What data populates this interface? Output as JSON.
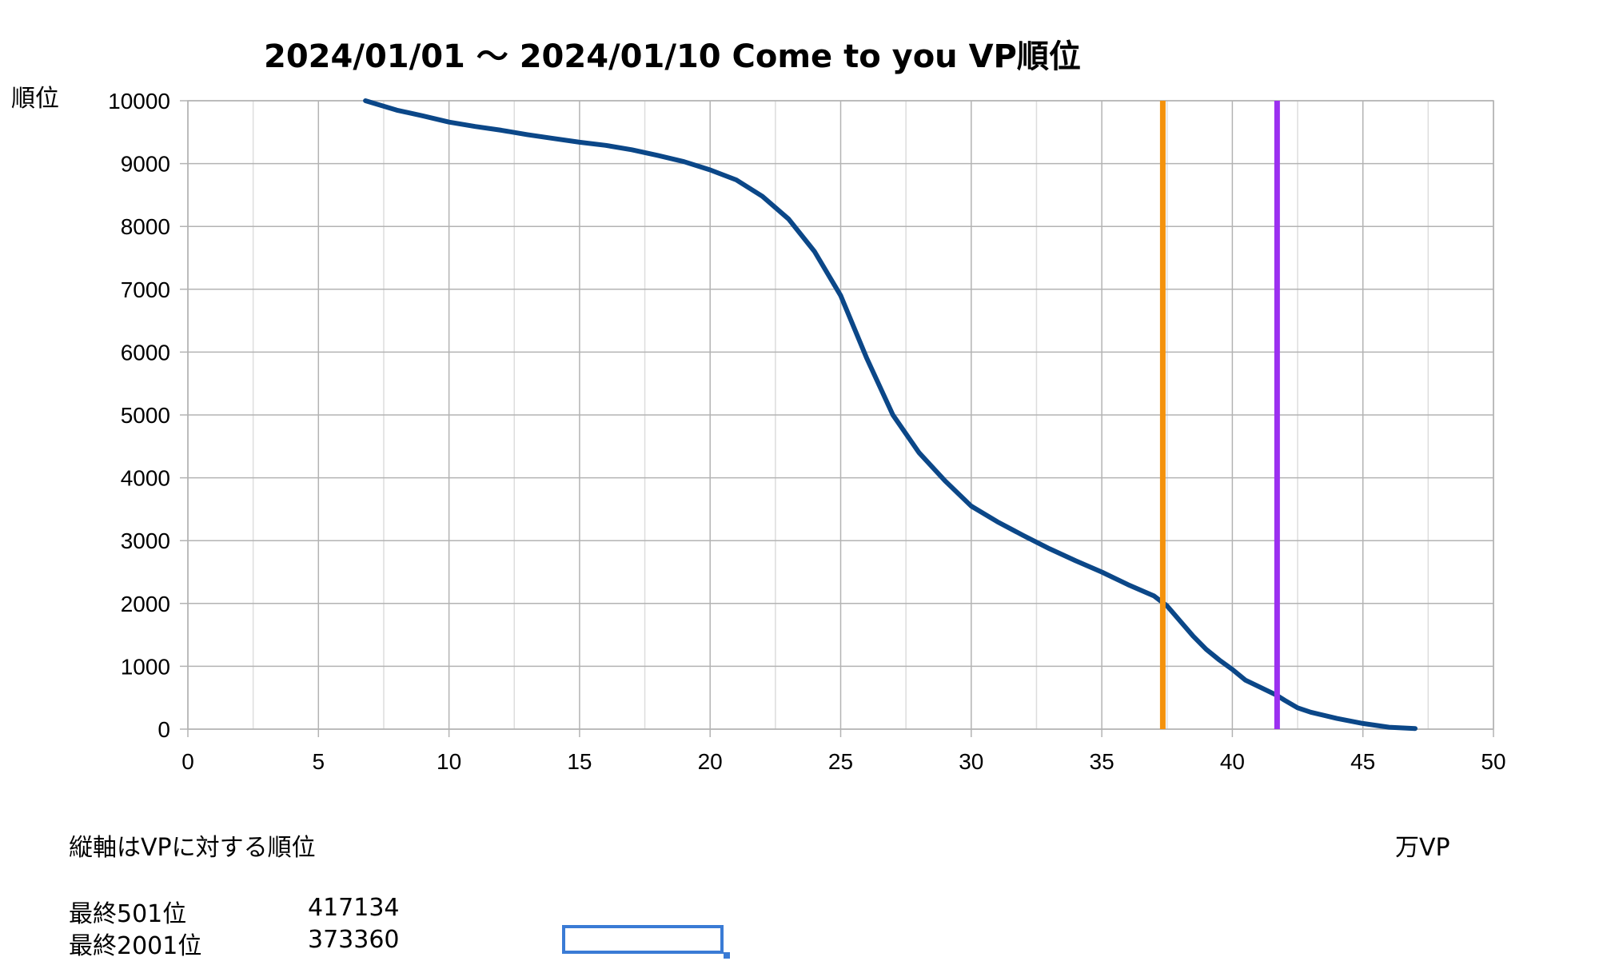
{
  "labels": {
    "title": "2024/01/01 ～ 2024/01/10 Come to you VP順位",
    "y_axis_title": "順位",
    "x_unit": "万VP",
    "note": "縦軸はVPに対する順位"
  },
  "stats": [
    {
      "label": "最終501位",
      "value": "417134"
    },
    {
      "label": "最終2001位",
      "value": "373360"
    }
  ],
  "colors": {
    "series": "#0b4788",
    "marker_2001": "#f4920c",
    "marker_501": "#9b30f0",
    "grid_major": "#b3b3b3",
    "grid_minor": "#dddddd",
    "selection": "#3a7bd5"
  },
  "chart_data": {
    "type": "line",
    "title": "2024/01/01 ～ 2024/01/10 Come to you VP順位",
    "xlabel": "万VP",
    "ylabel": "順位",
    "xlim": [
      0,
      50
    ],
    "ylim": [
      0,
      10000
    ],
    "x_ticks": [
      0,
      5,
      10,
      15,
      20,
      25,
      30,
      35,
      40,
      45,
      50
    ],
    "y_ticks": [
      0,
      1000,
      2000,
      3000,
      4000,
      5000,
      6000,
      7000,
      8000,
      9000,
      10000
    ],
    "grid": true,
    "legend": "none",
    "series": [
      {
        "points": [
          [
            6.8,
            10000
          ],
          [
            8,
            9850
          ],
          [
            9,
            9760
          ],
          [
            10,
            9660
          ],
          [
            11,
            9590
          ],
          [
            12,
            9530
          ],
          [
            13,
            9460
          ],
          [
            14,
            9400
          ],
          [
            15,
            9340
          ],
          [
            16,
            9290
          ],
          [
            17,
            9220
          ],
          [
            18,
            9130
          ],
          [
            19,
            9030
          ],
          [
            20,
            8900
          ],
          [
            21,
            8740
          ],
          [
            22,
            8480
          ],
          [
            23,
            8120
          ],
          [
            24,
            7600
          ],
          [
            25,
            6900
          ],
          [
            26,
            5900
          ],
          [
            27,
            5000
          ],
          [
            28,
            4400
          ],
          [
            29,
            3950
          ],
          [
            30,
            3550
          ],
          [
            31,
            3300
          ],
          [
            32,
            3080
          ],
          [
            33,
            2870
          ],
          [
            34,
            2680
          ],
          [
            35,
            2500
          ],
          [
            36,
            2300
          ],
          [
            37,
            2120
          ],
          [
            37.5,
            1960
          ],
          [
            38,
            1720
          ],
          [
            38.5,
            1480
          ],
          [
            39,
            1270
          ],
          [
            39.5,
            1100
          ],
          [
            40,
            950
          ],
          [
            40.5,
            780
          ],
          [
            41,
            680
          ],
          [
            41.7,
            540
          ],
          [
            42,
            460
          ],
          [
            42.5,
            340
          ],
          [
            43,
            270
          ],
          [
            44,
            170
          ],
          [
            45,
            90
          ],
          [
            46,
            30
          ],
          [
            47,
            10
          ]
        ]
      }
    ],
    "reference_lines": [
      {
        "x": 37.336,
        "color": "#f4920c"
      },
      {
        "x": 41.7134,
        "color": "#9b30f0"
      }
    ]
  }
}
